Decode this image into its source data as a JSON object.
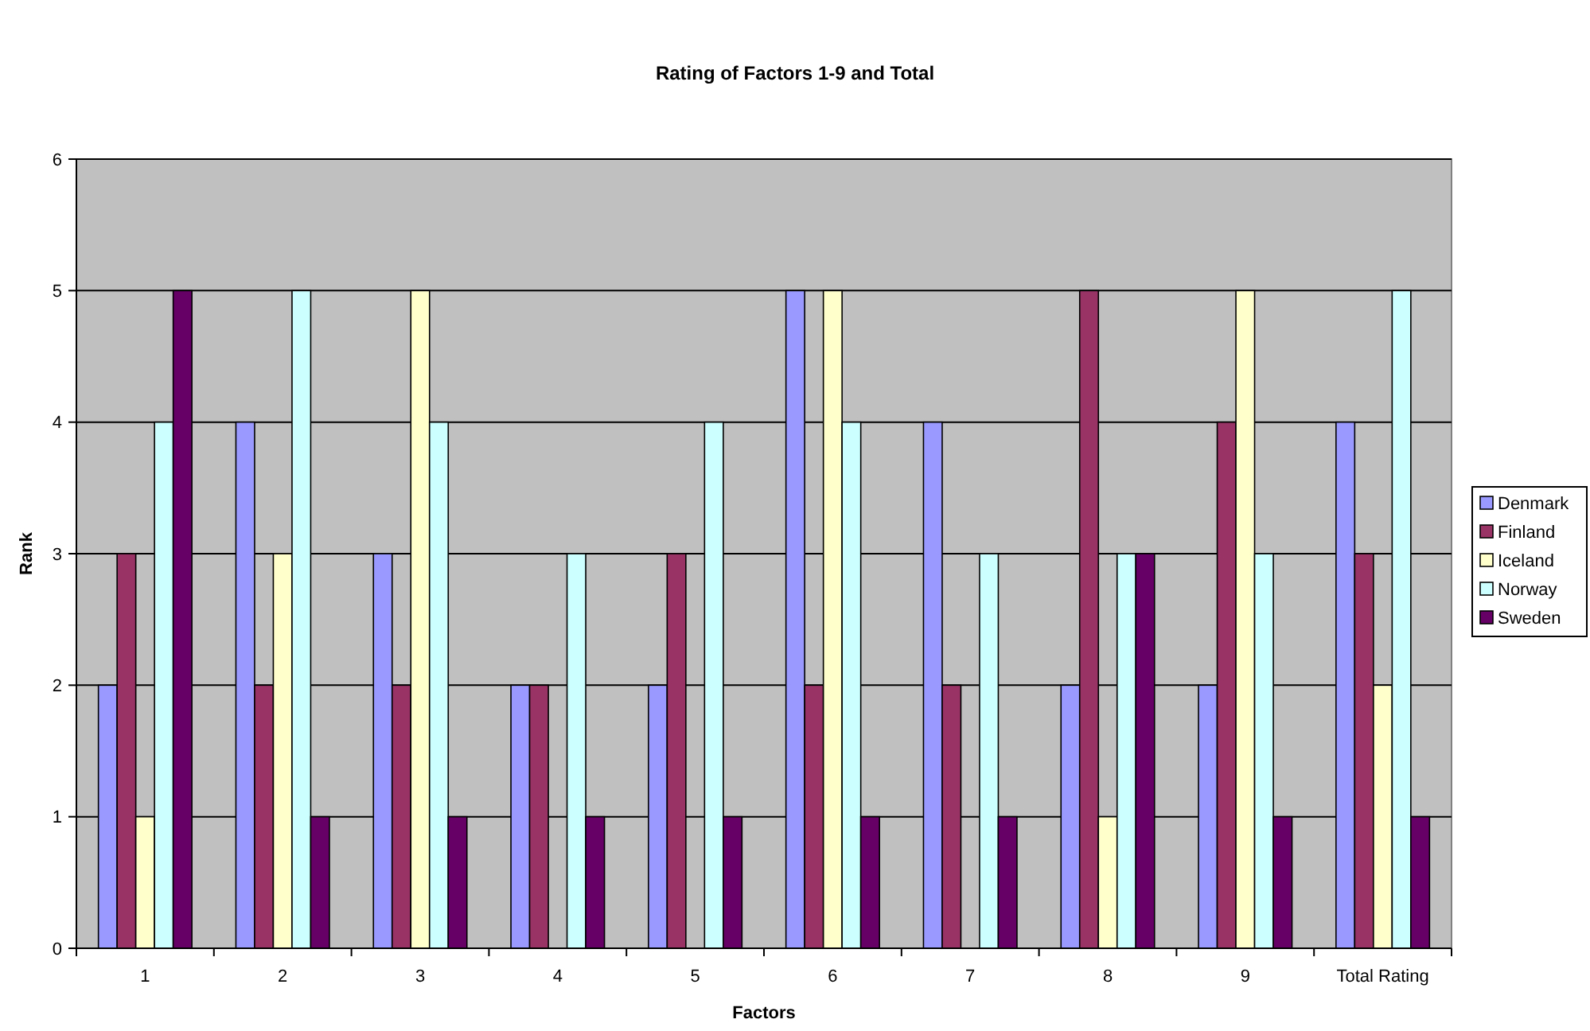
{
  "chart_data": {
    "type": "bar",
    "title": "Rating of Factors 1-9 and Total",
    "xlabel": "Factors",
    "ylabel": "Rank",
    "categories": [
      "1",
      "2",
      "3",
      "4",
      "5",
      "6",
      "7",
      "8",
      "9",
      "Total Rating"
    ],
    "series": [
      {
        "name": "Denmark",
        "color": "#9999ff",
        "values": [
          2,
          4,
          3,
          2,
          2,
          5,
          4,
          2,
          2,
          4
        ]
      },
      {
        "name": "Finland",
        "color": "#993366",
        "values": [
          3,
          2,
          2,
          2,
          3,
          2,
          2,
          5,
          4,
          3
        ]
      },
      {
        "name": "Iceland",
        "color": "#ffffcc",
        "values": [
          1,
          3,
          5,
          0,
          0,
          5,
          0,
          1,
          5,
          2
        ]
      },
      {
        "name": "Norway",
        "color": "#ccffff",
        "values": [
          4,
          5,
          4,
          3,
          4,
          4,
          3,
          3,
          3,
          5
        ]
      },
      {
        "name": "Sweden",
        "color": "#660066",
        "values": [
          5,
          1,
          1,
          1,
          1,
          1,
          1,
          3,
          1,
          1
        ]
      }
    ],
    "ylim": [
      0,
      6
    ],
    "yticks": [
      0,
      1,
      2,
      3,
      4,
      5,
      6
    ],
    "grid": "y",
    "legend": "right"
  }
}
